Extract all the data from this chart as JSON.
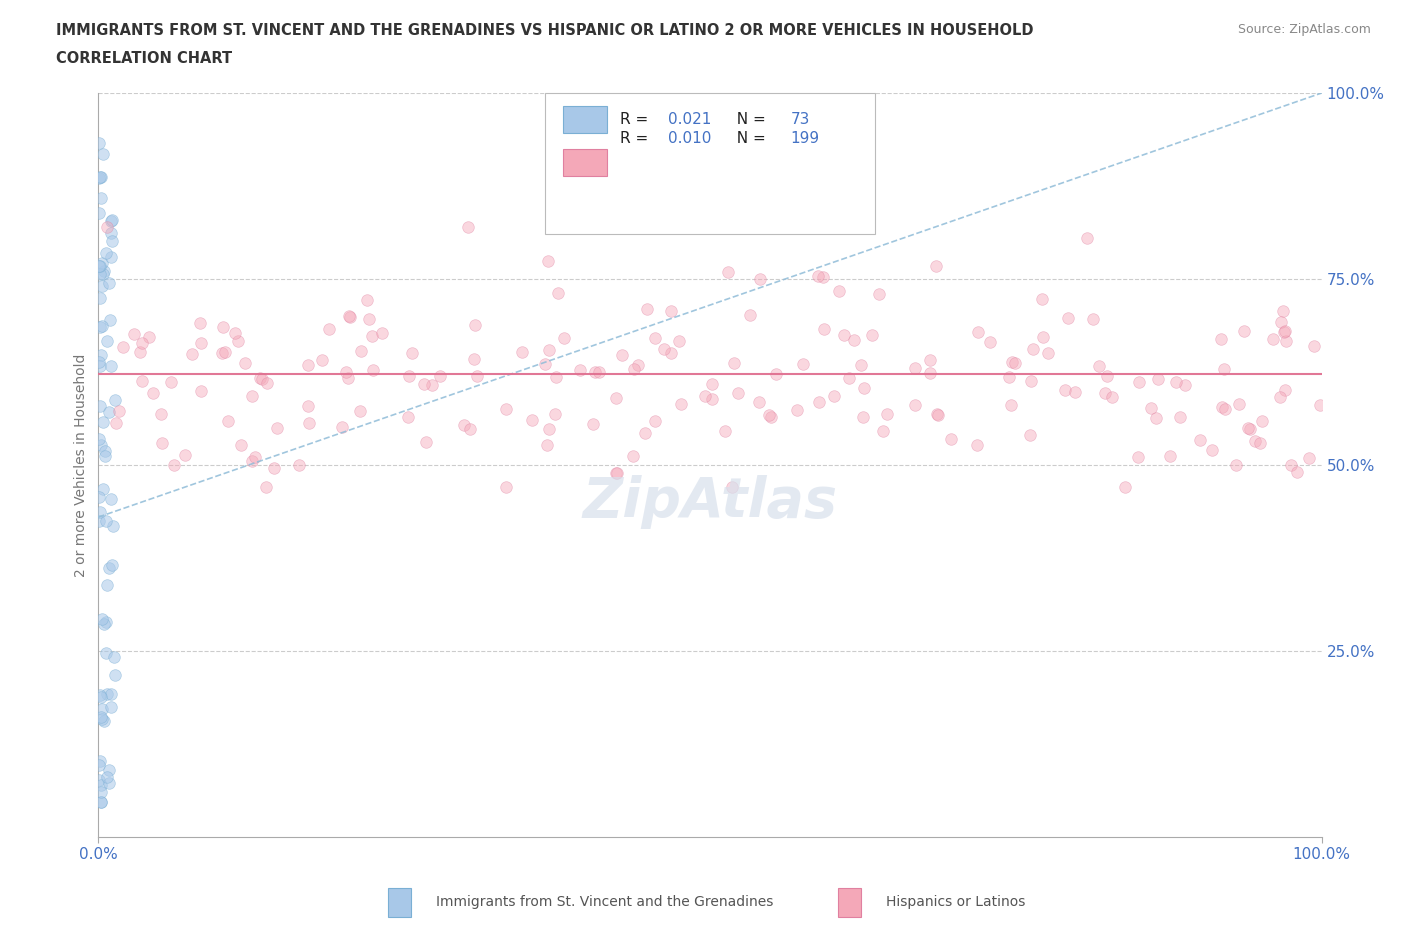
{
  "title_line1": "IMMIGRANTS FROM ST. VINCENT AND THE GRENADINES VS HISPANIC OR LATINO 2 OR MORE VEHICLES IN HOUSEHOLD",
  "title_line2": "CORRELATION CHART",
  "source_text": "Source: ZipAtlas.com",
  "ylabel": "2 or more Vehicles in Household",
  "legend_entries": [
    {
      "label": "Immigrants from St. Vincent and the Grenadines",
      "R": "0.021",
      "N": "73"
    },
    {
      "label": "Hispanics or Latinos",
      "R": "0.010",
      "N": "199"
    }
  ],
  "blue_color": "#a8c8e8",
  "blue_edge_color": "#7aafd4",
  "pink_color": "#f4a8b8",
  "pink_edge_color": "#e080a0",
  "blue_trend_color": "#90bcd8",
  "pink_trend_color": "#e07090",
  "grid_color": "#cccccc",
  "title_color": "#333333",
  "axis_label_color": "#777777",
  "tick_label_color": "#4472c4",
  "source_color": "#888888",
  "watermark_color": "#d8e0ec",
  "xlim": [
    0.0,
    1.0
  ],
  "ylim": [
    0.0,
    1.0
  ],
  "yticks": [
    0.25,
    0.5,
    0.75,
    1.0
  ],
  "marker_size": 70,
  "alpha_blue": 0.55,
  "alpha_pink": 0.45,
  "blue_trend_intercept": 0.43,
  "blue_trend_slope": 0.57,
  "pink_trend_y": 0.622
}
